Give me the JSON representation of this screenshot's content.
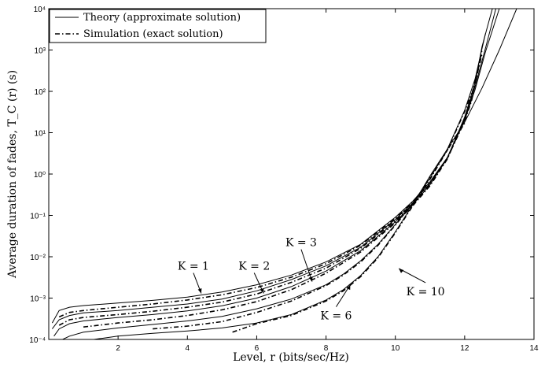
{
  "chart_data": {
    "type": "line",
    "xlabel": "Level, r (bits/sec/Hz)",
    "ylabel": "Average duration of fades, T_C (r) (s)",
    "xlim": [
      0,
      14
    ],
    "ylim": [
      0.0001,
      10000
    ],
    "yscale": "log",
    "xticks": [
      2,
      4,
      6,
      8,
      10,
      12,
      14
    ],
    "xtick_labels": [
      "2",
      "4",
      "6",
      "8",
      "10",
      "12",
      "14"
    ],
    "yticks": [
      0.0001,
      0.001,
      0.01,
      0.1,
      1,
      10,
      100,
      1000,
      10000
    ],
    "ytick_labels": [
      "10⁻⁴",
      "10⁻³",
      "10⁻²",
      "10⁻¹",
      "10⁰",
      "10¹",
      "10²",
      "10³",
      "10⁴"
    ],
    "grid": false,
    "legend_position": "top-left",
    "legend": [
      {
        "label": "Theory (approximate solution)",
        "style": "solid"
      },
      {
        "label": "Simulation (exact solution)",
        "style": "dash-dot"
      }
    ],
    "annotations": [
      {
        "text": "K = 1",
        "x": 4.4,
        "y": 0.0013
      },
      {
        "text": "K = 2",
        "x": 6.2,
        "y": 0.0013
      },
      {
        "text": "K = 3",
        "x": 7.6,
        "y": 0.0025
      },
      {
        "text": "K = 6",
        "x": 8.7,
        "y": 0.0021
      },
      {
        "text": "K = 10",
        "x": 10.1,
        "y": 0.0052
      }
    ],
    "series": [
      {
        "style": "solid",
        "x": [
          0.1,
          0.3,
          0.6,
          1,
          2,
          3,
          4,
          5,
          6,
          7,
          8,
          9,
          10,
          10.5,
          11,
          11.5,
          12,
          12.3,
          12.6,
          13.0
        ],
        "y": [
          0.00025,
          0.0005,
          0.0006,
          0.00066,
          0.00076,
          0.00088,
          0.00106,
          0.0014,
          0.0021,
          0.0036,
          0.0075,
          0.02,
          0.09,
          0.22,
          0.65,
          2.5,
          20,
          110,
          900,
          10000
        ]
      },
      {
        "style": "solid",
        "x": [
          0.1,
          0.3,
          0.6,
          1,
          2,
          3,
          4,
          5,
          6,
          7,
          8,
          9,
          10,
          10.5,
          11,
          11.5,
          12,
          12.3,
          12.6,
          12.9
        ],
        "y": [
          0.00018,
          0.0003,
          0.00038,
          0.00044,
          0.0005,
          0.0006,
          0.00072,
          0.00095,
          0.0015,
          0.0028,
          0.006,
          0.017,
          0.08,
          0.2,
          0.6,
          2.5,
          22,
          130,
          1100,
          10000
        ]
      },
      {
        "style": "solid",
        "x": [
          0.15,
          0.3,
          0.6,
          1,
          2,
          3,
          4,
          5,
          6,
          7,
          8,
          9,
          10,
          10.5,
          11,
          11.5,
          12,
          12.3,
          12.5,
          12.8
        ],
        "y": [
          0.00012,
          0.00018,
          0.00024,
          0.00028,
          0.00034,
          0.0004,
          0.00049,
          0.00065,
          0.001,
          0.0019,
          0.0045,
          0.014,
          0.07,
          0.18,
          0.55,
          2.4,
          24,
          160,
          1200,
          10000
        ]
      },
      {
        "style": "solid",
        "x": [
          0.4,
          0.6,
          1,
          2,
          3,
          4,
          5,
          6,
          7,
          8,
          8.5,
          9,
          9.5,
          10,
          10.5,
          11,
          11.5,
          12,
          12.3,
          12.6
        ],
        "y": [
          0.0001,
          0.00012,
          0.00015,
          0.00019,
          0.00023,
          0.00028,
          0.00036,
          0.00055,
          0.00095,
          0.0021,
          0.0038,
          0.008,
          0.02,
          0.06,
          0.2,
          0.8,
          4,
          35,
          200,
          2500
        ]
      },
      {
        "style": "solid",
        "x": [
          1.3,
          2,
          3,
          4,
          5,
          6,
          7,
          8,
          8.5,
          9,
          9.5,
          10,
          10.5,
          11,
          11.5,
          12,
          12.5,
          13.0,
          13.5
        ],
        "y": [
          0.0001,
          0.00012,
          0.00014,
          0.00016,
          0.00019,
          0.00025,
          0.0004,
          0.0009,
          0.0016,
          0.0035,
          0.01,
          0.04,
          0.18,
          0.9,
          4,
          18,
          120,
          1000,
          10000
        ]
      },
      {
        "style": "dashdot",
        "x": [
          0.3,
          0.6,
          1,
          2,
          3,
          4,
          5,
          6,
          7,
          8,
          9,
          10,
          10.5,
          11,
          11.5,
          12,
          12.2,
          12.5
        ],
        "y": [
          0.00035,
          0.00045,
          0.0005,
          0.0006,
          0.00072,
          0.0009,
          0.0012,
          0.0018,
          0.0032,
          0.0068,
          0.019,
          0.085,
          0.21,
          0.62,
          2.4,
          19,
          60,
          1000
        ]
      },
      {
        "style": "dashdot",
        "x": [
          0.3,
          0.6,
          1,
          2,
          3,
          4,
          5,
          6,
          7,
          8,
          9,
          10,
          10.5,
          11,
          11.5,
          12,
          12.2,
          12.5
        ],
        "y": [
          0.00022,
          0.0003,
          0.00034,
          0.0004,
          0.00048,
          0.0006,
          0.0008,
          0.00125,
          0.0024,
          0.0053,
          0.016,
          0.075,
          0.19,
          0.58,
          2.4,
          21,
          70,
          800
        ]
      },
      {
        "style": "dashdot",
        "x": [
          1,
          2,
          3,
          4,
          5,
          6,
          7,
          8,
          9,
          10,
          10.5,
          11,
          11.5,
          12,
          12.2,
          12.4
        ],
        "y": [
          0.0002,
          0.00025,
          0.0003,
          0.00038,
          0.00052,
          0.00082,
          0.0016,
          0.004,
          0.013,
          0.066,
          0.17,
          0.52,
          2.3,
          22,
          80,
          400
        ]
      },
      {
        "style": "dashdot",
        "x": [
          3.0,
          4,
          5,
          6,
          7,
          8,
          8.5,
          9,
          9.5,
          10,
          10.5,
          11,
          11.5,
          12,
          12.2
        ],
        "y": [
          0.00018,
          0.00021,
          0.00027,
          0.00045,
          0.00085,
          0.002,
          0.0036,
          0.0075,
          0.019,
          0.058,
          0.19,
          0.75,
          3.8,
          33,
          90
        ]
      },
      {
        "style": "dashdot",
        "x": [
          5.3,
          6,
          7,
          8,
          8.5,
          9,
          9.5,
          10,
          10.5,
          11,
          11.5,
          12
        ],
        "y": [
          0.00015,
          0.00024,
          0.00038,
          0.00085,
          0.0015,
          0.0033,
          0.0095,
          0.038,
          0.17,
          0.85,
          3.8,
          17
        ]
      }
    ]
  }
}
